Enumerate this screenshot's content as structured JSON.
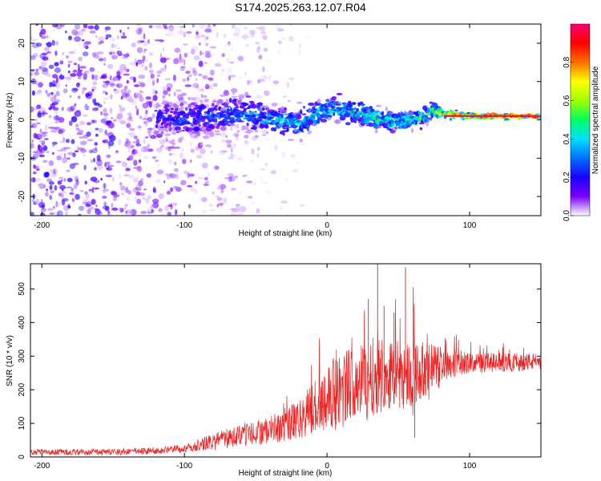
{
  "title": "S174.2025.263.12.07.R04",
  "chart_data": [
    {
      "type": "heatmap",
      "name": "spectrogram",
      "xlabel": "Height of straight line (km)",
      "ylabel": "Frequency (Hz)",
      "xlim": [
        -208,
        150
      ],
      "ylim": [
        -25,
        25
      ],
      "xticks": [
        -200,
        -100,
        0,
        100
      ],
      "yticks": [
        -20,
        -10,
        0,
        10,
        20
      ],
      "colorbar": {
        "label": "Normalized spectral amplitude",
        "range": [
          0,
          1
        ],
        "ticks": [
          "0.0",
          "0.2",
          "0.4",
          "0.6",
          "0.8"
        ],
        "tick_values": [
          0,
          0.2,
          0.4,
          0.6,
          0.8
        ],
        "colors": [
          "#ffffff",
          "#7a00ff",
          "#1a00ff",
          "#0070ff",
          "#00e0ff",
          "#00ff60",
          "#a0ff00",
          "#ffff00",
          "#ff7000",
          "#ff0000",
          "#ff0070"
        ]
      },
      "ridge": {
        "x": [
          -120,
          -100,
          -80,
          -60,
          -40,
          -20,
          0,
          20,
          40,
          60,
          70,
          75,
          80,
          100,
          120,
          150
        ],
        "freq": [
          1,
          0,
          1,
          2,
          0,
          -1,
          3,
          2,
          0,
          0,
          1,
          3,
          1.5,
          1,
          1,
          1
        ],
        "spread": [
          4,
          4,
          4,
          4,
          3,
          3,
          2.5,
          2.5,
          2,
          2,
          1.5,
          1.5,
          0.8,
          0.6,
          0.5,
          0.5
        ],
        "amplitude": [
          0.25,
          0.3,
          0.3,
          0.35,
          0.4,
          0.45,
          0.45,
          0.45,
          0.5,
          0.5,
          0.55,
          0.6,
          0.75,
          0.85,
          0.95,
          0.95
        ]
      }
    },
    {
      "type": "line",
      "name": "snr",
      "xlabel": "Height of straight line (km)",
      "ylabel": "SNR (10 * v/v)",
      "xlim": [
        -208,
        150
      ],
      "ylim": [
        0,
        575
      ],
      "xticks": [
        -200,
        -100,
        0,
        100
      ],
      "yticks": [
        0,
        100,
        200,
        300,
        400,
        500
      ],
      "color": "#ee2222",
      "envelope": {
        "x": [
          -208,
          -150,
          -120,
          -100,
          -80,
          -60,
          -40,
          -20,
          0,
          20,
          40,
          60,
          80,
          100,
          120,
          150
        ],
        "mean": [
          15,
          15,
          18,
          25,
          45,
          65,
          80,
          110,
          180,
          230,
          250,
          245,
          280,
          280,
          280,
          285
        ],
        "spread": [
          8,
          10,
          10,
          12,
          25,
          35,
          40,
          60,
          100,
          110,
          115,
          100,
          55,
          30,
          30,
          25
        ]
      },
      "spikes": [
        {
          "x": 35.5,
          "y": 575
        },
        {
          "x": 55.0,
          "y": 565
        },
        {
          "x": 29.0,
          "y": 470
        },
        {
          "x": 60.5,
          "y": 505
        },
        {
          "x": 40.0,
          "y": 450
        },
        {
          "x": 47.0,
          "y": 430
        },
        {
          "x": 61.5,
          "y": 57
        }
      ]
    }
  ]
}
